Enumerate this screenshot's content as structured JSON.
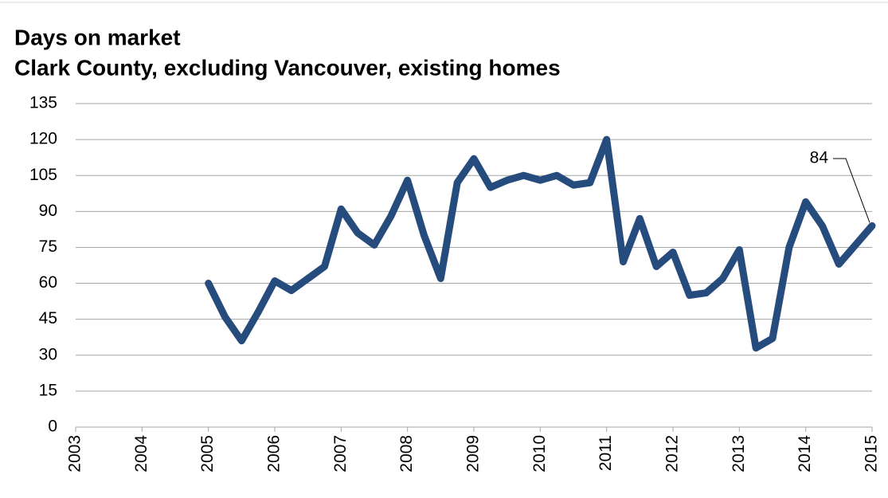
{
  "chart_data": {
    "type": "line",
    "title": "Days on market",
    "subtitle": "Clark County, excluding Vancouver, existing homes",
    "x": [
      2005,
      2005.25,
      2005.5,
      2005.75,
      2006,
      2006.25,
      2006.5,
      2006.75,
      2007,
      2007.25,
      2007.5,
      2007.75,
      2008,
      2008.25,
      2008.5,
      2008.75,
      2009,
      2009.25,
      2009.5,
      2009.75,
      2010,
      2010.25,
      2010.5,
      2010.75,
      2011,
      2011.25,
      2011.5,
      2011.75,
      2012,
      2012.25,
      2012.5,
      2012.75,
      2013,
      2013.25,
      2013.5,
      2013.75,
      2014,
      2014.25,
      2014.5,
      2014.75,
      2015
    ],
    "series": [
      {
        "name": "Days on market",
        "color": "#264b7d",
        "values": [
          60,
          46,
          36,
          48,
          61,
          57,
          62,
          67,
          91,
          81,
          76,
          88,
          103,
          80,
          62,
          102,
          112,
          100,
          103,
          105,
          103,
          105,
          101,
          102,
          120,
          69,
          87,
          67,
          73,
          55,
          56,
          62,
          74,
          33,
          37,
          75,
          94,
          84,
          68,
          76,
          84
        ]
      }
    ],
    "xlim": [
      2003,
      2015
    ],
    "xticks": [
      2003,
      2004,
      2005,
      2006,
      2007,
      2008,
      2009,
      2010,
      2011,
      2012,
      2013,
      2014,
      2015
    ],
    "ylim": [
      0,
      135
    ],
    "yticks": [
      0,
      15,
      30,
      45,
      60,
      75,
      90,
      105,
      120,
      135
    ],
    "grid": true
  }
}
